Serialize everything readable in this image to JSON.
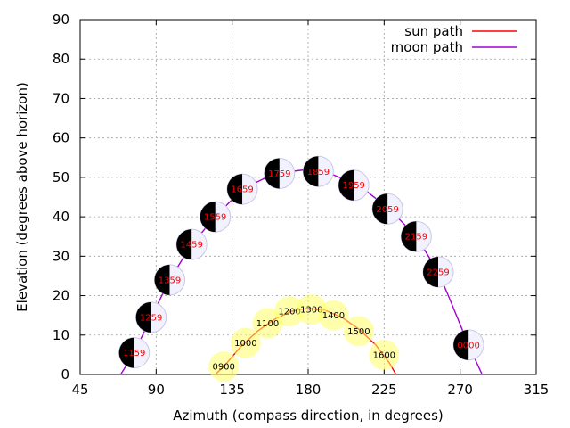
{
  "chart_data": {
    "type": "line",
    "title": "",
    "xlabel": "Azimuth (compass direction, in degrees)",
    "ylabel": "Elevation (degrees above horizon)",
    "xlim": [
      45,
      315
    ],
    "ylim": [
      0,
      90
    ],
    "xticks": [
      45,
      90,
      135,
      180,
      225,
      270,
      315
    ],
    "yticks": [
      0,
      10,
      20,
      30,
      40,
      50,
      60,
      70,
      80,
      90
    ],
    "grid": true,
    "legend_position": "top-right",
    "series": [
      {
        "name": "sun path",
        "color": "#ff0000",
        "curve": [
          {
            "x": 125,
            "y": 0
          },
          {
            "x": 130,
            "y": 2
          },
          {
            "x": 140,
            "y": 7
          },
          {
            "x": 150,
            "y": 11
          },
          {
            "x": 160,
            "y": 14
          },
          {
            "x": 170,
            "y": 16
          },
          {
            "x": 180,
            "y": 16.8
          },
          {
            "x": 190,
            "y": 16.3
          },
          {
            "x": 200,
            "y": 14.5
          },
          {
            "x": 210,
            "y": 11.5
          },
          {
            "x": 220,
            "y": 7.5
          },
          {
            "x": 228,
            "y": 3
          },
          {
            "x": 232,
            "y": 0
          }
        ],
        "markers": [
          {
            "label": "0900",
            "x": 130,
            "y": 2
          },
          {
            "label": "1000",
            "x": 143,
            "y": 8
          },
          {
            "label": "1100",
            "x": 156,
            "y": 13
          },
          {
            "label": "1200",
            "x": 169,
            "y": 16
          },
          {
            "label": "1300",
            "x": 182,
            "y": 16.5
          },
          {
            "label": "1400",
            "x": 195,
            "y": 15
          },
          {
            "label": "1500",
            "x": 210,
            "y": 11
          },
          {
            "label": "1600",
            "x": 225,
            "y": 5
          }
        ]
      },
      {
        "name": "moon path",
        "color": "#a000d0",
        "curve": [
          {
            "x": 69,
            "y": 0
          },
          {
            "x": 77,
            "y": 5.5
          },
          {
            "x": 87,
            "y": 14.5
          },
          {
            "x": 98,
            "y": 24
          },
          {
            "x": 111,
            "y": 33
          },
          {
            "x": 125,
            "y": 40
          },
          {
            "x": 141,
            "y": 47
          },
          {
            "x": 160,
            "y": 51
          },
          {
            "x": 180,
            "y": 52
          },
          {
            "x": 190,
            "y": 51.5
          },
          {
            "x": 210,
            "y": 48
          },
          {
            "x": 228,
            "y": 42
          },
          {
            "x": 244,
            "y": 35
          },
          {
            "x": 257,
            "y": 26
          },
          {
            "x": 263,
            "y": 20
          },
          {
            "x": 275,
            "y": 7.5
          },
          {
            "x": 283,
            "y": 0
          }
        ],
        "markers": [
          {
            "label": "1159",
            "x": 77,
            "y": 5.5
          },
          {
            "label": "1259",
            "x": 87,
            "y": 14.5
          },
          {
            "label": "1359",
            "x": 98,
            "y": 24
          },
          {
            "label": "1459",
            "x": 111,
            "y": 33
          },
          {
            "label": "1559",
            "x": 125,
            "y": 40
          },
          {
            "label": "1659",
            "x": 141,
            "y": 47
          },
          {
            "label": "1759",
            "x": 163,
            "y": 51
          },
          {
            "label": "1859",
            "x": 186,
            "y": 51.5
          },
          {
            "label": "1959",
            "x": 207,
            "y": 48
          },
          {
            "label": "2059",
            "x": 227,
            "y": 42
          },
          {
            "label": "2159",
            "x": 244,
            "y": 35
          },
          {
            "label": "2259",
            "x": 257,
            "y": 26
          },
          {
            "label": "0000",
            "x": 275,
            "y": 7.5
          }
        ]
      }
    ]
  }
}
